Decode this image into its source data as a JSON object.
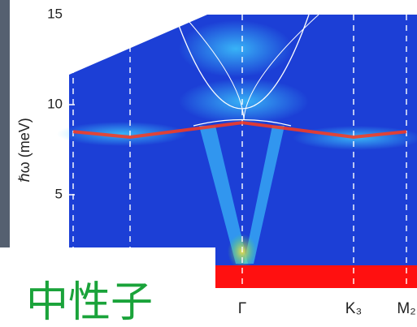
{
  "chart_data": {
    "type": "dispersion",
    "ylabel": "ℏω (meV)",
    "ylim": [
      0,
      15
    ],
    "yticks": [
      5,
      10,
      15
    ],
    "categories": [
      null,
      null,
      "Γ",
      "K₃",
      "M₂"
    ],
    "series": [
      {
        "name": null,
        "color": "#ff3a1a",
        "values": [
          8.5,
          8.2,
          9.0,
          8.2,
          8.5
        ]
      }
    ],
    "overlay_text": "中性子"
  }
}
